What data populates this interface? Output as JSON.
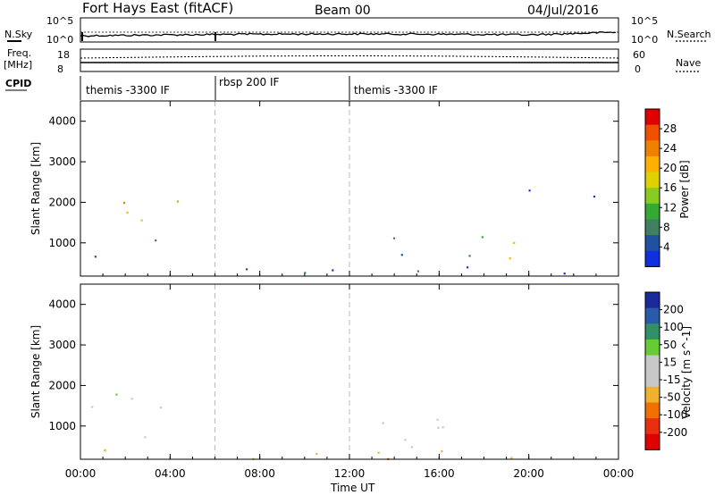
{
  "header": {
    "radar": "Fort Hays East (fitACF)",
    "beam": "Beam 00",
    "date": "04/Jul/2016"
  },
  "top_panels": {
    "nsky_label": "N.Sky",
    "nsky_ticks": [
      "10^5",
      "10^0"
    ],
    "nsearch_label": "N.Search",
    "nsearch_ticks": [
      "10^5",
      "10^0"
    ],
    "freq_label": "Freq.",
    "freq_unit": "[MHz]",
    "freq_ticks": [
      "18",
      "8"
    ],
    "nave_label": "Nave",
    "nave_ticks": [
      "60",
      "0"
    ],
    "cpid_label": "CPID",
    "cpid_segments": [
      {
        "label": "themis -3300 IF",
        "start": 0,
        "end": 6
      },
      {
        "label": "rbsp 200 IF",
        "start": 6,
        "end": 12
      },
      {
        "label": "themis -3300 IF",
        "start": 12,
        "end": 24
      }
    ]
  },
  "power_panel": {
    "ylabel": "Slant Range [km]",
    "cbar_label": "Power [dB]",
    "cbar_ticks": [
      "28",
      "24",
      "20",
      "16",
      "12",
      "8",
      "4"
    ],
    "cbar_colors": [
      "#e00000",
      "#f05000",
      "#f08000",
      "#ffb000",
      "#e0d000",
      "#88cc22",
      "#33aa33",
      "#408060",
      "#2050a0",
      "#1030e0"
    ]
  },
  "velocity_panel": {
    "ylabel": "Slant Range [km]",
    "cbar_label": "Velocity [m s^-1]",
    "cbar_ticks": [
      "200",
      "100",
      "50",
      "15",
      "-15",
      "-50",
      "-100",
      "-200"
    ],
    "cbar_colors": [
      "#1a2a9a",
      "#2a5aaa",
      "#30906a",
      "#66cc33",
      "#c8c8c8",
      "#c8c8c8",
      "#f0b030",
      "#f07000",
      "#e83010",
      "#e00000"
    ]
  },
  "xaxis": {
    "label": "Time UT",
    "ticks": [
      "00:00",
      "04:00",
      "08:00",
      "12:00",
      "16:00",
      "20:00",
      "00:00"
    ]
  },
  "chart_data": {
    "type": "heatmap",
    "xlabel": "Time UT",
    "ylabel": "Slant Range [km]",
    "xlim_hours": [
      0,
      24
    ],
    "ylim_km": [
      180,
      4500
    ],
    "yticks": [
      1000,
      2000,
      3000,
      4000
    ],
    "program_changes_hours": [
      6,
      12
    ],
    "power_regions": [
      {
        "t0": 0.1,
        "t1": 4.6,
        "r0": 1300,
        "r1": 2100,
        "level": "high"
      },
      {
        "t0": 0.5,
        "t1": 3.5,
        "r0": 400,
        "r1": 1100,
        "level": "low"
      },
      {
        "t0": 0.0,
        "t1": 24.0,
        "r0": 200,
        "r1": 420,
        "level": "low"
      },
      {
        "t0": 12.2,
        "t1": 20.0,
        "r0": 500,
        "r1": 1200,
        "level": "mixed"
      },
      {
        "t0": 19.0,
        "t1": 24.0,
        "r0": 1400,
        "r1": 2500,
        "level": "sparse"
      }
    ],
    "velocity_regions": [
      {
        "t0": 0.1,
        "t1": 4.6,
        "r0": 1300,
        "r1": 2100,
        "class": "near-zero"
      },
      {
        "t0": 0.5,
        "t1": 3.5,
        "r0": 400,
        "r1": 1100,
        "class": "near-zero"
      },
      {
        "t0": 0.0,
        "t1": 24.0,
        "r0": 180,
        "r1": 420,
        "class": "negative"
      },
      {
        "t0": 12.2,
        "t1": 20.0,
        "r0": 500,
        "r1": 1200,
        "class": "near-zero"
      }
    ]
  }
}
